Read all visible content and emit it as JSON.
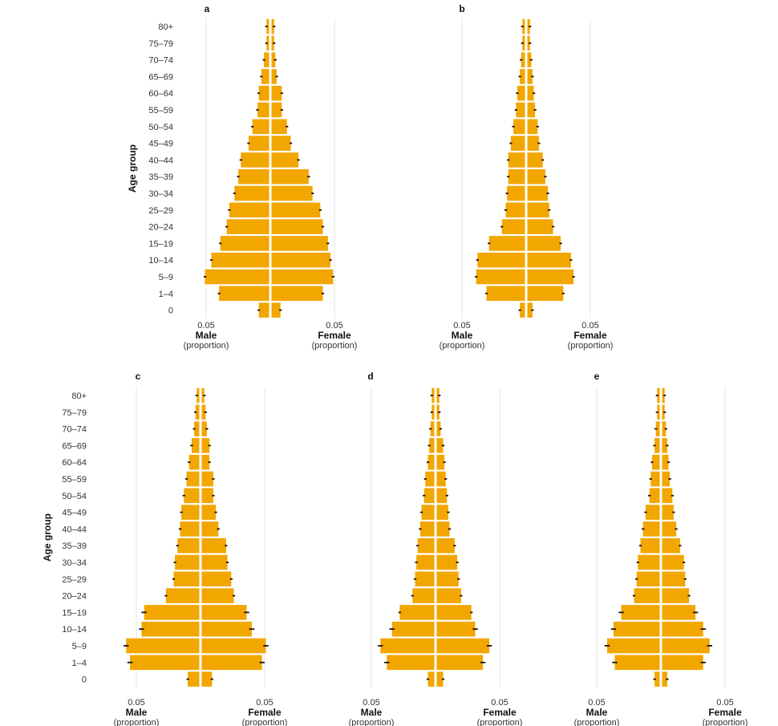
{
  "colors": {
    "bar": "#F2A600",
    "errorbar": "#111111",
    "grid": "#e6e6e6",
    "background": "#ffffff"
  },
  "age_groups": [
    "80+",
    "75–79",
    "70–74",
    "65–69",
    "60–64",
    "55–59",
    "50–54",
    "45–49",
    "40–44",
    "35–39",
    "30–34",
    "25–29",
    "20–24",
    "15–19",
    "10–14",
    "5–9",
    "1–4",
    "0"
  ],
  "y_axis_title": "Age group",
  "x_tick_label": "0.05",
  "male_label": "Male",
  "female_label": "Female",
  "unit_label": "(proportion)",
  "chart_data": [
    {
      "type": "bar",
      "panel": "a",
      "categories": [
        "80+",
        "75–79",
        "70–74",
        "65–69",
        "60–64",
        "55–59",
        "50–54",
        "45–49",
        "40–44",
        "35–39",
        "30–34",
        "25–29",
        "20–24",
        "15–19",
        "10–14",
        "5–9",
        "1–4",
        "0"
      ],
      "series": [
        {
          "name": "Male",
          "values": [
            0.002,
            0.002,
            0.004,
            0.006,
            0.008,
            0.009,
            0.013,
            0.016,
            0.022,
            0.024,
            0.027,
            0.031,
            0.033,
            0.038,
            0.045,
            0.05,
            0.039,
            0.008
          ],
          "err": [
            0.001,
            0.001,
            0.001,
            0.001,
            0.001,
            0.001,
            0.001,
            0.001,
            0.001,
            0.001,
            0.001,
            0.001,
            0.001,
            0.001,
            0.001,
            0.001,
            0.001,
            0.001
          ]
        },
        {
          "name": "Female",
          "values": [
            0.002,
            0.002,
            0.003,
            0.004,
            0.008,
            0.008,
            0.012,
            0.015,
            0.021,
            0.029,
            0.032,
            0.038,
            0.04,
            0.044,
            0.046,
            0.048,
            0.04,
            0.007
          ],
          "err": [
            0.001,
            0.001,
            0.001,
            0.001,
            0.001,
            0.001,
            0.001,
            0.001,
            0.001,
            0.001,
            0.001,
            0.001,
            0.001,
            0.001,
            0.001,
            0.001,
            0.001,
            0.001
          ]
        }
      ],
      "xlim": [
        -0.055,
        0.055
      ],
      "xticks": [
        -0.05,
        0.05
      ],
      "grid": true
    },
    {
      "type": "bar",
      "panel": "b",
      "categories": [
        "80+",
        "75–79",
        "70–74",
        "65–69",
        "60–64",
        "55–59",
        "50–54",
        "45–49",
        "40–44",
        "35–39",
        "30–34",
        "25–29",
        "20–24",
        "15–19",
        "10–14",
        "5–9",
        "1–4",
        "0"
      ],
      "series": [
        {
          "name": "Male",
          "values": [
            0.002,
            0.002,
            0.003,
            0.004,
            0.006,
            0.007,
            0.009,
            0.011,
            0.013,
            0.013,
            0.014,
            0.015,
            0.018,
            0.028,
            0.037,
            0.038,
            0.03,
            0.004
          ],
          "err": [
            0.001,
            0.001,
            0.001,
            0.001,
            0.001,
            0.001,
            0.001,
            0.001,
            0.001,
            0.001,
            0.001,
            0.001,
            0.001,
            0.001,
            0.001,
            0.001,
            0.001,
            0.001
          ]
        },
        {
          "name": "Female",
          "values": [
            0.002,
            0.002,
            0.003,
            0.004,
            0.005,
            0.006,
            0.008,
            0.009,
            0.012,
            0.014,
            0.016,
            0.017,
            0.02,
            0.026,
            0.034,
            0.036,
            0.028,
            0.004
          ],
          "err": [
            0.001,
            0.001,
            0.001,
            0.001,
            0.001,
            0.001,
            0.001,
            0.001,
            0.001,
            0.001,
            0.001,
            0.001,
            0.001,
            0.001,
            0.001,
            0.001,
            0.001,
            0.001
          ]
        }
      ],
      "xlim": [
        -0.055,
        0.055
      ],
      "xticks": [
        -0.05,
        0.05
      ],
      "grid": true
    },
    {
      "type": "bar",
      "panel": "c",
      "categories": [
        "80+",
        "75–79",
        "70–74",
        "65–69",
        "60–64",
        "55–59",
        "50–54",
        "45–49",
        "40–44",
        "35–39",
        "30–34",
        "25–29",
        "20–24",
        "15–19",
        "10–14",
        "5–9",
        "1–4",
        "0"
      ],
      "series": [
        {
          "name": "Male",
          "values": [
            0.002,
            0.003,
            0.004,
            0.006,
            0.008,
            0.01,
            0.012,
            0.014,
            0.015,
            0.017,
            0.019,
            0.02,
            0.026,
            0.043,
            0.045,
            0.057,
            0.054,
            0.009
          ],
          "err": [
            0.001,
            0.001,
            0.001,
            0.001,
            0.001,
            0.001,
            0.001,
            0.001,
            0.001,
            0.001,
            0.001,
            0.001,
            0.001,
            0.002,
            0.002,
            0.002,
            0.002,
            0.001
          ]
        },
        {
          "name": "Female",
          "values": [
            0.002,
            0.003,
            0.004,
            0.006,
            0.006,
            0.009,
            0.009,
            0.011,
            0.013,
            0.019,
            0.02,
            0.023,
            0.025,
            0.035,
            0.039,
            0.05,
            0.047,
            0.008
          ],
          "err": [
            0.001,
            0.001,
            0.001,
            0.001,
            0.001,
            0.001,
            0.001,
            0.001,
            0.001,
            0.001,
            0.001,
            0.001,
            0.001,
            0.002,
            0.002,
            0.002,
            0.002,
            0.001
          ]
        }
      ],
      "xlim": [
        -0.065,
        0.065
      ],
      "xticks": [
        -0.05,
        0.05
      ],
      "grid": true
    },
    {
      "type": "bar",
      "panel": "d",
      "categories": [
        "80+",
        "75–79",
        "70–74",
        "65–69",
        "60–64",
        "55–59",
        "50–54",
        "45–49",
        "40–44",
        "35–39",
        "30–34",
        "25–29",
        "20–24",
        "15–19",
        "10–14",
        "5–9",
        "1–4",
        "0"
      ],
      "series": [
        {
          "name": "Male",
          "values": [
            0.002,
            0.002,
            0.003,
            0.004,
            0.005,
            0.007,
            0.008,
            0.01,
            0.011,
            0.013,
            0.014,
            0.015,
            0.017,
            0.027,
            0.033,
            0.042,
            0.037,
            0.005
          ],
          "err": [
            0.001,
            0.001,
            0.001,
            0.001,
            0.001,
            0.001,
            0.001,
            0.001,
            0.001,
            0.001,
            0.001,
            0.001,
            0.001,
            0.001,
            0.002,
            0.002,
            0.002,
            0.001
          ]
        },
        {
          "name": "Female",
          "values": [
            0.002,
            0.002,
            0.003,
            0.005,
            0.006,
            0.007,
            0.008,
            0.009,
            0.01,
            0.014,
            0.016,
            0.017,
            0.019,
            0.027,
            0.03,
            0.041,
            0.036,
            0.005
          ],
          "err": [
            0.001,
            0.001,
            0.001,
            0.001,
            0.001,
            0.001,
            0.001,
            0.001,
            0.001,
            0.001,
            0.001,
            0.001,
            0.001,
            0.001,
            0.002,
            0.002,
            0.002,
            0.001
          ]
        }
      ],
      "xlim": [
        -0.065,
        0.065
      ],
      "xticks": [
        -0.05,
        0.05
      ],
      "grid": true
    },
    {
      "type": "bar",
      "panel": "e",
      "categories": [
        "80+",
        "75–79",
        "70–74",
        "65–69",
        "60–64",
        "55–59",
        "50–54",
        "45–49",
        "40–44",
        "35–39",
        "30–34",
        "25–29",
        "20–24",
        "15–19",
        "10–14",
        "5–9",
        "1–4",
        "0"
      ],
      "series": [
        {
          "name": "Male",
          "values": [
            0.002,
            0.002,
            0.003,
            0.004,
            0.006,
            0.007,
            0.008,
            0.011,
            0.013,
            0.015,
            0.017,
            0.018,
            0.02,
            0.03,
            0.036,
            0.041,
            0.035,
            0.004
          ],
          "err": [
            0.001,
            0.001,
            0.001,
            0.001,
            0.001,
            0.001,
            0.001,
            0.001,
            0.001,
            0.001,
            0.001,
            0.001,
            0.001,
            0.002,
            0.002,
            0.002,
            0.002,
            0.001
          ]
        },
        {
          "name": "Female",
          "values": [
            0.002,
            0.002,
            0.003,
            0.004,
            0.005,
            0.006,
            0.008,
            0.009,
            0.011,
            0.014,
            0.017,
            0.018,
            0.021,
            0.026,
            0.032,
            0.037,
            0.032,
            0.004
          ],
          "err": [
            0.001,
            0.001,
            0.001,
            0.001,
            0.001,
            0.001,
            0.001,
            0.001,
            0.001,
            0.001,
            0.001,
            0.001,
            0.001,
            0.002,
            0.002,
            0.002,
            0.002,
            0.001
          ]
        }
      ],
      "xlim": [
        -0.065,
        0.065
      ],
      "xticks": [
        -0.05,
        0.05
      ],
      "grid": true
    }
  ]
}
